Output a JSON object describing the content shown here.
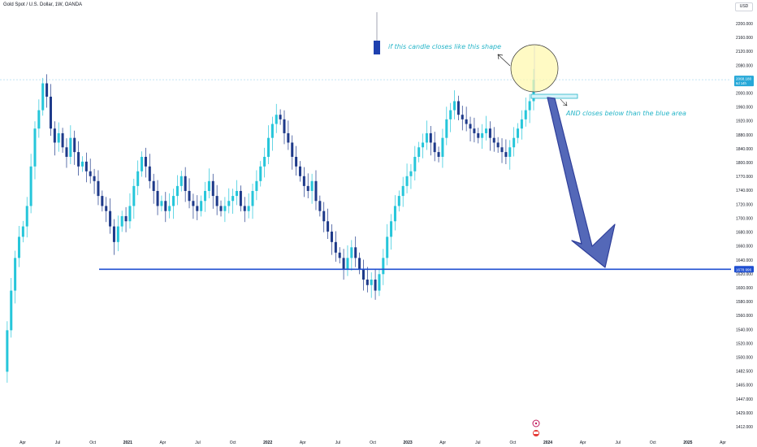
{
  "header": {
    "symbol_title": "Gold Spot / U.S. Dollar, 1W, OANDA",
    "currency_button": "USD"
  },
  "colors": {
    "up": "#26c6da",
    "down": "#1e3a8a",
    "support_line": "#1f4fd1",
    "annotation_text": "#26b5c8",
    "price_line": "#9fd5ee",
    "arrow_fill": "#5468b8"
  },
  "chart_data": {
    "type": "candlestick",
    "title": "Gold Spot / U.S. Dollar, 1W, OANDA",
    "y_axis": {
      "side": "right",
      "scale": "log",
      "range": [
        1400,
        2240
      ],
      "ticks": [
        "2200.000",
        "2160.000",
        "2120.000",
        "2080.000",
        "2040.000",
        "2000.000",
        "1960.000",
        "1920.000",
        "1880.000",
        "1840.000",
        "1800.000",
        "1770.000",
        "1740.000",
        "1720.000",
        "1700.000",
        "1680.000",
        "1660.000",
        "1640.000",
        "1620.000",
        "1600.000",
        "1580.000",
        "1560.000",
        "1540.000",
        "1520.000",
        "1500.000",
        "1482.500",
        "1465.000",
        "1447.000",
        "1429.000",
        "1412.000"
      ]
    },
    "x_axis": {
      "ticks": [
        "Apr",
        "Jul",
        "Oct",
        "2021",
        "Apr",
        "Jul",
        "Oct",
        "2022",
        "Apr",
        "Jul",
        "Oct",
        "2023",
        "Apr",
        "Jul",
        "Oct",
        "2024",
        "Apr",
        "Jul",
        "Oct",
        "2025",
        "Apr"
      ]
    },
    "current_price": {
      "label": "2068.180",
      "sublabel": "6d 14h",
      "value": 2068.18
    },
    "support_level": {
      "label": "1678.996",
      "value": 1678.996
    },
    "ohlc_trace": [
      1500,
      1570,
      1640,
      1700,
      1740,
      1760,
      1800,
      1880,
      1960,
      2000,
      2060,
      2030,
      1960,
      1930,
      1950,
      1920,
      1900,
      1940,
      1910,
      1880,
      1890,
      1870,
      1860,
      1850,
      1820,
      1800,
      1790,
      1760,
      1730,
      1760,
      1780,
      1770,
      1800,
      1840,
      1870,
      1900,
      1880,
      1850,
      1830,
      1800,
      1810,
      1790,
      1800,
      1820,
      1840,
      1860,
      1830,
      1810,
      1800,
      1790,
      1810,
      1830,
      1850,
      1820,
      1800,
      1790,
      1800,
      1810,
      1820,
      1830,
      1800,
      1790,
      1800,
      1830,
      1850,
      1880,
      1900,
      1940,
      1970,
      1990,
      1980,
      1950,
      1930,
      1900,
      1880,
      1860,
      1840,
      1830,
      1850,
      1810,
      1790,
      1770,
      1750,
      1730,
      1710,
      1700,
      1680,
      1700,
      1720,
      1700,
      1680,
      1660,
      1650,
      1660,
      1640,
      1670,
      1700,
      1740,
      1770,
      1800,
      1820,
      1840,
      1860,
      1870,
      1900,
      1920,
      1930,
      1950,
      1930,
      1910,
      1900,
      1940,
      1980,
      2000,
      2020,
      1990,
      1980,
      1970,
      1960,
      1950,
      1940,
      1950,
      1960,
      1940,
      1930,
      1920,
      1910,
      1900,
      1920,
      1940,
      1960,
      1980,
      2000,
      2020,
      2068
    ],
    "annotations": [
      "if this candle closes like this shape",
      "AND closes below than the blue area"
    ]
  }
}
